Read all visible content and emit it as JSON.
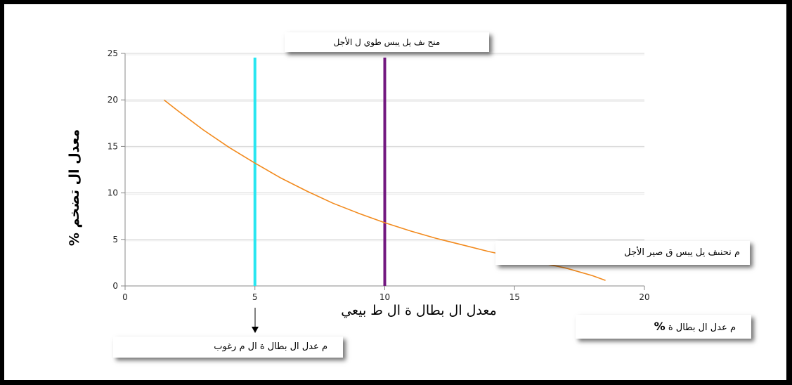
{
  "chart_data": {
    "type": "line",
    "xlim": [
      0,
      20
    ],
    "ylim": [
      0,
      25
    ],
    "x_ticks": [
      "0",
      "5",
      "10",
      "15",
      "20"
    ],
    "y_ticks": [
      "0",
      "5",
      "10",
      "15",
      "20",
      "25"
    ],
    "grid": "horizontal",
    "xlabel": "معدل ال بطال ة ال ط بيعي",
    "ylabel": "معدل ال تضخم %",
    "series": [
      {
        "name": "م نحنىف يل يبس ق صير الأجل",
        "color": "#f28a1d",
        "x": [
          1.5,
          2,
          3,
          4,
          5,
          6,
          7,
          8,
          9,
          10,
          11,
          12,
          13,
          14,
          15,
          16,
          17,
          18,
          18.5
        ],
        "y": [
          20,
          18.9,
          16.8,
          14.9,
          13.2,
          11.6,
          10.2,
          8.9,
          7.8,
          6.8,
          5.9,
          5.1,
          4.4,
          3.7,
          3.1,
          2.5,
          1.9,
          1.1,
          0.6
        ]
      }
    ],
    "vertical_lines": [
      {
        "x": 5,
        "color": "#28e6f0",
        "label": "م عدل ال بطال ة ال م رغوب"
      },
      {
        "x": 10,
        "color": "#72177f",
        "label": "منح ىف يل يبس طوي ل الأجل"
      }
    ]
  },
  "annotations": {
    "long_run_curve": "منح ىف يل يبس طوي ل الأجل",
    "short_run_curve": "م نحنىف يل يبس ق صير الأجل",
    "unemployment_rate": "م عدل ال بطال ة",
    "unemployment_symbol": "%",
    "desired_unemployment": "م عدل ال بطال ة ال م رغوب"
  }
}
